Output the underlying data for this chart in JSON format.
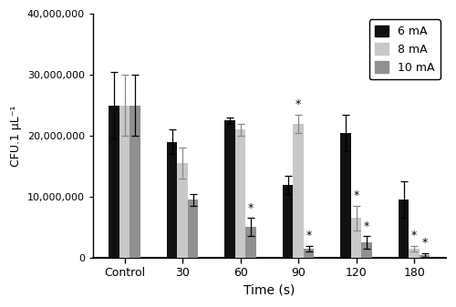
{
  "categories": [
    "Control",
    "30",
    "60",
    "90",
    "120",
    "180"
  ],
  "series": {
    "6 mA": {
      "values": [
        25000000,
        19000000,
        22500000,
        12000000,
        20500000,
        9500000
      ],
      "errors": [
        5500000,
        2000000,
        500000,
        1500000,
        3000000,
        3000000
      ],
      "color": "#111111"
    },
    "8 mA": {
      "values": [
        25000000,
        15500000,
        21000000,
        22000000,
        6500000,
        1500000
      ],
      "errors": [
        5000000,
        2500000,
        1000000,
        1500000,
        2000000,
        500000
      ],
      "color": "#c8c8c8"
    },
    "10 mA": {
      "values": [
        25000000,
        9500000,
        5000000,
        1500000,
        2500000,
        500000
      ],
      "errors": [
        5000000,
        1000000,
        1500000,
        500000,
        1000000,
        300000
      ],
      "color": "#909090"
    }
  },
  "star_positions": {
    "6 mA": [
      false,
      false,
      false,
      false,
      false,
      false
    ],
    "8 mA": [
      false,
      false,
      false,
      true,
      true,
      true
    ],
    "10 mA": [
      false,
      false,
      true,
      true,
      true,
      true
    ]
  },
  "xlabel": "Time (s)",
  "ylabel": "CFU.1 μL⁻¹",
  "ylim": [
    0,
    40000000
  ],
  "yticks": [
    0,
    10000000,
    20000000,
    30000000,
    40000000
  ],
  "ytick_labels": [
    "0",
    "10,000,000",
    "20,000,000",
    "30,000,000",
    "40,000,000"
  ],
  "bar_width": 0.18,
  "legend_labels": [
    "6 mA",
    "8 mA",
    "10 mA"
  ],
  "background_color": "#ffffff",
  "capsize": 3
}
